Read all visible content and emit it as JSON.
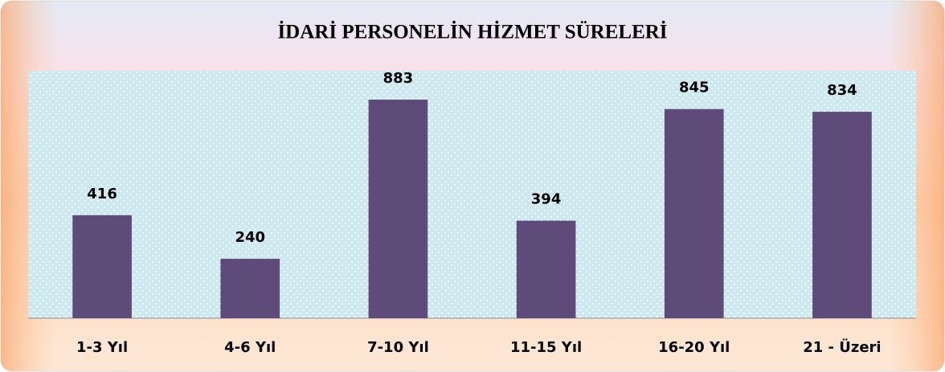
{
  "chart_data": {
    "type": "bar",
    "title": "İDARİ PERSONELİN HİZMET SÜRELERİ",
    "categories": [
      "1-3 Yıl",
      "4-6 Yıl",
      "7-10 Yıl",
      "11-15 Yıl",
      "16-20 Yıl",
      "21 - Üzeri"
    ],
    "values": [
      416,
      240,
      883,
      394,
      845,
      834
    ],
    "color": "#5f4b7a",
    "ylim": [
      0,
      1000
    ],
    "grid": false
  }
}
